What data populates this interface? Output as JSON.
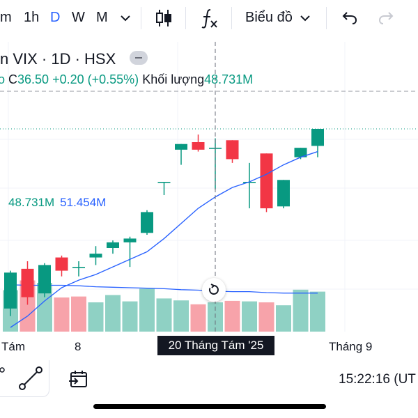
{
  "toolbar": {
    "intervals": [
      {
        "label": "m",
        "active": false
      },
      {
        "label": "1h",
        "active": false
      },
      {
        "label": "D",
        "active": true
      },
      {
        "label": "W",
        "active": false
      },
      {
        "label": "M",
        "active": false
      }
    ],
    "chart_type_label": "Biểu đồ",
    "icons": [
      "chevron-down-icon",
      "candlestick-icon",
      "indicators-fx-icon",
      "undo-icon",
      "redo-icon"
    ]
  },
  "legend": {
    "symbol": "n VIX · 1D · HSX",
    "close_prefix": "C",
    "close": "36.50",
    "change": "+0.20 (+0.55%)",
    "volume_label": "Khối lượng",
    "volume": "48.731M"
  },
  "volume_legend": {
    "value": "48.731M",
    "ma": "51.454M"
  },
  "crosshair": {
    "date_label": "20 Tháng Tám '25"
  },
  "x_axis": {
    "labels": [
      "Tám",
      "8",
      "Tháng 9"
    ]
  },
  "bottom": {
    "time": "15:22:16 (UT",
    "icons": [
      "line-tool-icon",
      "replay-icon"
    ]
  },
  "colors": {
    "up": "#089981",
    "down": "#f23645",
    "ma_line": "#2962ff",
    "volume_up": "#8fd1c4",
    "volume_down": "#f7a3aa",
    "accent": "#2962ff"
  },
  "chart_data": {
    "type": "candlestick",
    "candles": [
      {
        "o": 36.0,
        "h": 38.0,
        "l": 35.6,
        "c": 37.9
      },
      {
        "o": 38.1,
        "h": 38.5,
        "l": 36.2,
        "c": 36.6
      },
      {
        "o": 36.8,
        "h": 38.4,
        "l": 36.6,
        "c": 38.3
      },
      {
        "o": 38.7,
        "h": 38.8,
        "l": 37.7,
        "c": 38.0
      },
      {
        "o": 38.2,
        "h": 38.5,
        "l": 37.7,
        "c": 38.2
      },
      {
        "o": 38.7,
        "h": 39.3,
        "l": 38.3,
        "c": 38.9
      },
      {
        "o": 39.2,
        "h": 39.6,
        "l": 38.9,
        "c": 39.5
      },
      {
        "o": 39.5,
        "h": 39.8,
        "l": 38.2,
        "c": 39.7
      },
      {
        "o": 40.0,
        "h": 41.2,
        "l": 39.9,
        "c": 41.1
      },
      {
        "o": 42.7,
        "h": 42.7,
        "l": 42.0,
        "c": 42.7
      },
      {
        "o": 44.4,
        "h": 44.7,
        "l": 43.6,
        "c": 44.7
      },
      {
        "o": 44.8,
        "h": 45.2,
        "l": 44.3,
        "c": 44.4
      },
      {
        "o": 44.5,
        "h": 45.0,
        "l": 42.3,
        "c": 44.5
      },
      {
        "o": 44.9,
        "h": 44.9,
        "l": 43.7,
        "c": 43.9
      },
      {
        "o": 42.7,
        "h": 43.7,
        "l": 41.3,
        "c": 42.7
      },
      {
        "o": 44.2,
        "h": 44.2,
        "l": 41.1,
        "c": 41.3
      },
      {
        "o": 41.4,
        "h": 42.8,
        "l": 41.3,
        "c": 42.8
      },
      {
        "o": 44.0,
        "h": 44.5,
        "l": 43.9,
        "c": 44.5
      },
      {
        "o": 44.6,
        "h": 45.5,
        "l": 44.0,
        "c": 45.5
      }
    ],
    "ma_line": [
      35.0,
      35.6,
      36.4,
      37.1,
      37.5,
      37.8,
      38.2,
      38.6,
      39.0,
      39.7,
      40.5,
      41.3,
      41.9,
      42.4,
      42.7,
      43.1,
      43.6,
      44.0,
      44.3
    ],
    "volume": {
      "values": [
        0.85,
        1.05,
        1.0,
        0.7,
        0.72,
        0.6,
        0.75,
        0.62,
        0.88,
        0.68,
        0.64,
        0.56,
        0.6,
        0.63,
        0.62,
        0.6,
        0.54,
        0.86,
        0.82
      ],
      "ma": [
        0.96,
        0.95,
        0.95,
        0.95,
        0.94,
        0.92,
        0.91,
        0.9,
        0.89,
        0.88,
        0.86,
        0.85,
        0.83,
        0.82,
        0.82,
        0.8,
        0.79,
        0.79,
        0.79
      ],
      "up": [
        true,
        false,
        true,
        false,
        false,
        true,
        true,
        true,
        true,
        true,
        true,
        false,
        true,
        false,
        true,
        false,
        true,
        true,
        true
      ]
    }
  }
}
